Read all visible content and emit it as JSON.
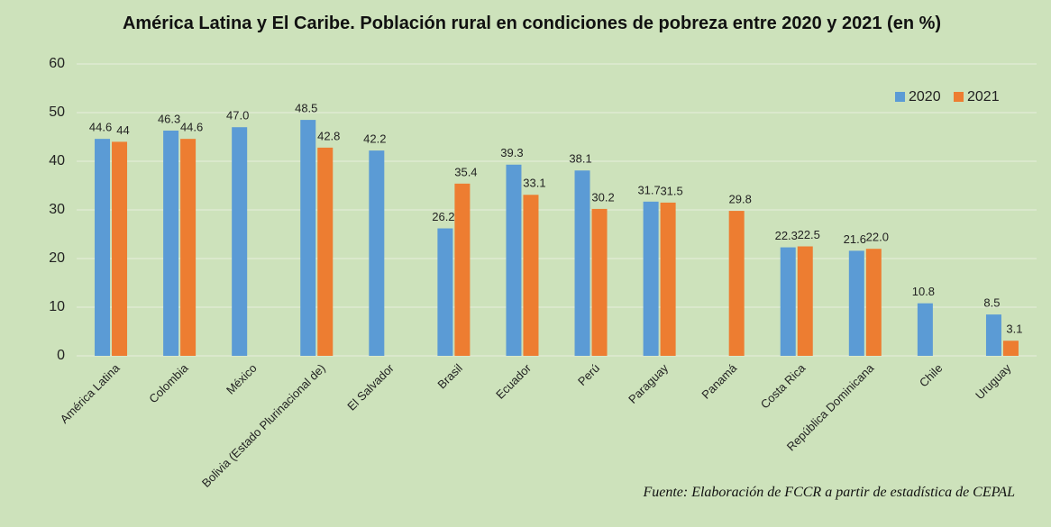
{
  "chart_data": {
    "type": "bar",
    "title": "América Latina y El Caribe. Población rural en condiciones de pobreza entre 2020 y 2021 (en %)",
    "categories": [
      "América Latina",
      "Colombia",
      "México",
      "Bolivia (Estado Plurinacional de)",
      "El Salvador",
      "Brasil",
      "Ecuador",
      "Perú",
      "Paraguay",
      "Panamá",
      "Costa Rica",
      "República Dominicana",
      "Chile",
      "Uruguay"
    ],
    "series": [
      {
        "name": "2020",
        "color": "#5b9bd5",
        "values": [
          44.6,
          46.3,
          47.0,
          48.5,
          42.2,
          26.2,
          39.3,
          38.1,
          31.7,
          null,
          22.3,
          21.6,
          10.8,
          8.5
        ],
        "value_labels": [
          "44.6",
          "46.3",
          "47.0",
          "48.5",
          "42.2",
          "26.2",
          "39.3",
          "38.1",
          "31.7",
          null,
          "22.3",
          "21.6",
          "10.8",
          "8.5"
        ]
      },
      {
        "name": "2021",
        "color": "#ed7d31",
        "values": [
          44,
          44.6,
          null,
          42.8,
          null,
          35.4,
          33.1,
          30.2,
          31.5,
          29.8,
          22.5,
          22.0,
          null,
          3.1
        ],
        "value_labels": [
          "44",
          "44.6",
          null,
          "42.8",
          null,
          "35.4",
          "33.1",
          "30.2",
          "31.5",
          "29.8",
          "22.5",
          "22.0",
          null,
          "3.1"
        ]
      }
    ],
    "ylim": [
      0,
      60
    ],
    "yticks": [
      0,
      10,
      20,
      30,
      40,
      50,
      60
    ],
    "grid": true,
    "legend": "top-right",
    "source": "Fuente: Elaboración de FCCR a partir de estadística de CEPAL"
  }
}
